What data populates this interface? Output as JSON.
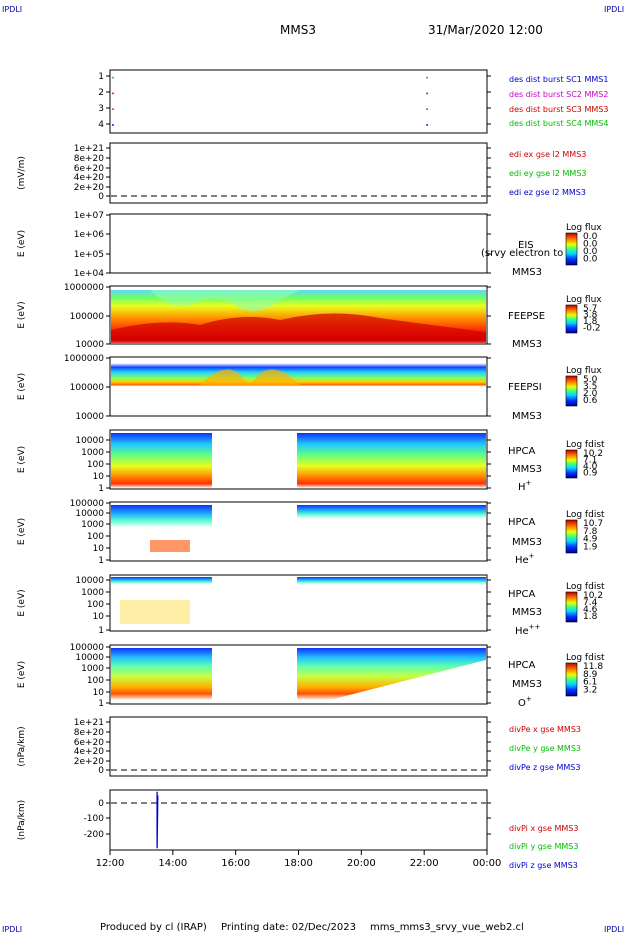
{
  "corner_tag": "IPDLI",
  "header": {
    "spacecraft": "MMS3",
    "datetime": "31/Mar/2020 12:00"
  },
  "footer": {
    "producer": "Produced by cl (IRAP)",
    "printing": "Printing date: 02/Dec/2023",
    "filename": "mms_mms3_srvy_vue_web2.cl"
  },
  "time_axis": {
    "ticks": [
      "12:00",
      "14:00",
      "16:00",
      "18:00",
      "20:00",
      "22:00",
      "00:00"
    ],
    "range_hours": [
      12,
      24
    ]
  },
  "chart_data": [
    {
      "panel": "burst",
      "type": "scatter",
      "ylim": [
        0.5,
        4.5
      ],
      "yticks": [
        "1",
        "2",
        "3",
        "4"
      ],
      "points": [
        {
          "x": 12.1,
          "y": 4
        },
        {
          "x": 12.1,
          "y": 3
        },
        {
          "x": 12.1,
          "y": 2
        },
        {
          "x": 12.1,
          "y": 1
        },
        {
          "x": 22.1,
          "y": 4
        },
        {
          "x": 22.1,
          "y": 3
        },
        {
          "x": 22.1,
          "y": 2
        },
        {
          "x": 22.1,
          "y": 1
        }
      ],
      "legend": [
        {
          "label": "des dist burst SC1 MMS1",
          "color": "#0000cc"
        },
        {
          "label": "des dist burst SC2 MMS2",
          "color": "#cc00cc"
        },
        {
          "label": "des dist burst SC3 MMS3",
          "color": "#cc0000"
        },
        {
          "label": "des dist burst SC4 MMS4",
          "color": "#00bb00"
        }
      ]
    },
    {
      "panel": "edi",
      "type": "line",
      "ylabel": "(mV/m)",
      "yticks": [
        "1e+21",
        "8e+20",
        "6e+20",
        "4e+20",
        "2e+20",
        "0"
      ],
      "dashed_zero": true,
      "legend": [
        {
          "label": "edi ex gse l2 MMS3",
          "color": "#cc0000"
        },
        {
          "label": "edi ey gse l2 MMS3",
          "color": "#00bb00"
        },
        {
          "label": "edi ez gse l2 MMS3",
          "color": "#0000cc"
        }
      ]
    },
    {
      "panel": "eis",
      "type": "heatmap",
      "ylabel": "E (eV)",
      "yticks": [
        "1e+07",
        "1e+06",
        "1e+05",
        "1e+04"
      ],
      "log_scale": true,
      "name": "EIS",
      "name2": "MMS3",
      "overflow_text": "(srvy electron to",
      "colorbar_title": "Log flux",
      "colorbar_ticks": [
        "0.0",
        "0.0",
        "0.0",
        "0.0"
      ]
    },
    {
      "panel": "feeps_e",
      "type": "heatmap",
      "ylabel": "E (eV)",
      "yticks": [
        "1000000",
        "100000",
        "10000"
      ],
      "log_scale": true,
      "name": "FEEPSE",
      "name2": "MMS3",
      "colorbar_title": "Log flux",
      "colorbar_ticks": [
        "5.7",
        "3.8",
        "1.8",
        "-0.2"
      ]
    },
    {
      "panel": "feeps_i",
      "type": "heatmap",
      "ylabel": "E (eV)",
      "yticks": [
        "1000000",
        "100000",
        "10000"
      ],
      "log_scale": true,
      "name": "FEEPSI",
      "name2": "MMS3",
      "colorbar_title": "Log flux",
      "colorbar_ticks": [
        "5.0",
        "3.5",
        "2.0",
        "0.6"
      ]
    },
    {
      "panel": "hpca_h",
      "type": "heatmap",
      "ylabel": "E (eV)",
      "yticks": [
        "10000",
        "1000",
        "100",
        "10",
        "1"
      ],
      "log_scale": true,
      "name": "HPCA",
      "name2": "MMS3",
      "species": "H",
      "species_sup": "+",
      "colorbar_title": "Log fdist",
      "colorbar_ticks": [
        "10.2",
        "7.1",
        "4.0",
        "0.9"
      ],
      "data_gap_hours": [
        15.25,
        17.95
      ]
    },
    {
      "panel": "hpca_he",
      "type": "heatmap",
      "ylabel": "E (eV)",
      "yticks": [
        "100000",
        "10000",
        "1000",
        "100",
        "10",
        "1"
      ],
      "log_scale": true,
      "name": "HPCA",
      "name2": "MMS3",
      "species": "He",
      "species_sup": "+",
      "colorbar_title": "Log fdist",
      "colorbar_ticks": [
        "10.7",
        "7.8",
        "4.9",
        "1.9"
      ],
      "data_gap_hours": [
        15.25,
        17.95
      ]
    },
    {
      "panel": "hpca_he2",
      "type": "heatmap",
      "ylabel": "E (eV)",
      "yticks": [
        "10000",
        "1000",
        "100",
        "10",
        "1"
      ],
      "log_scale": true,
      "name": "HPCA",
      "name2": "MMS3",
      "species": "He",
      "species_sup": "++",
      "colorbar_title": "Log fdist",
      "colorbar_ticks": [
        "10.2",
        "7.4",
        "4.6",
        "1.8"
      ],
      "data_gap_hours": [
        15.25,
        17.95
      ]
    },
    {
      "panel": "hpca_o",
      "type": "heatmap",
      "ylabel": "E (eV)",
      "yticks": [
        "100000",
        "10000",
        "1000",
        "100",
        "10",
        "1"
      ],
      "log_scale": true,
      "name": "HPCA",
      "name2": "MMS3",
      "species": "O",
      "species_sup": "+",
      "colorbar_title": "Log fdist",
      "colorbar_ticks": [
        "11.8",
        "8.9",
        "6.1",
        "3.2"
      ],
      "data_gap_hours": [
        15.25,
        17.95
      ]
    },
    {
      "panel": "divpe",
      "type": "line",
      "ylabel": "(nPa/km)",
      "yticks": [
        "1e+21",
        "8e+20",
        "6e+20",
        "4e+20",
        "2e+20",
        "0"
      ],
      "dashed_zero": true,
      "legend": [
        {
          "label": "divPe x gse MMS3",
          "color": "#cc0000"
        },
        {
          "label": "divPe y gse MMS3",
          "color": "#00bb00"
        },
        {
          "label": "divPe z gse MMS3",
          "color": "#0000cc"
        }
      ]
    },
    {
      "panel": "divpi",
      "type": "line",
      "ylabel": "(nPa/km)",
      "yticks": [
        "0",
        "-100",
        "-200"
      ],
      "ylim": [
        -300,
        30
      ],
      "series": [
        {
          "name": "divPi z gse MMS3",
          "points": [
            {
              "x": 13.5,
              "y": 20
            },
            {
              "x": 13.5,
              "y": -290
            },
            {
              "x": 13.52,
              "y": 0
            }
          ]
        }
      ],
      "legend": [
        {
          "label": "divPi x gse MMS3",
          "color": "#cc0000"
        },
        {
          "label": "divPi y gse MMS3",
          "color": "#00bb00"
        },
        {
          "label": "divPi z gse MMS3",
          "color": "#0000cc"
        }
      ]
    }
  ]
}
